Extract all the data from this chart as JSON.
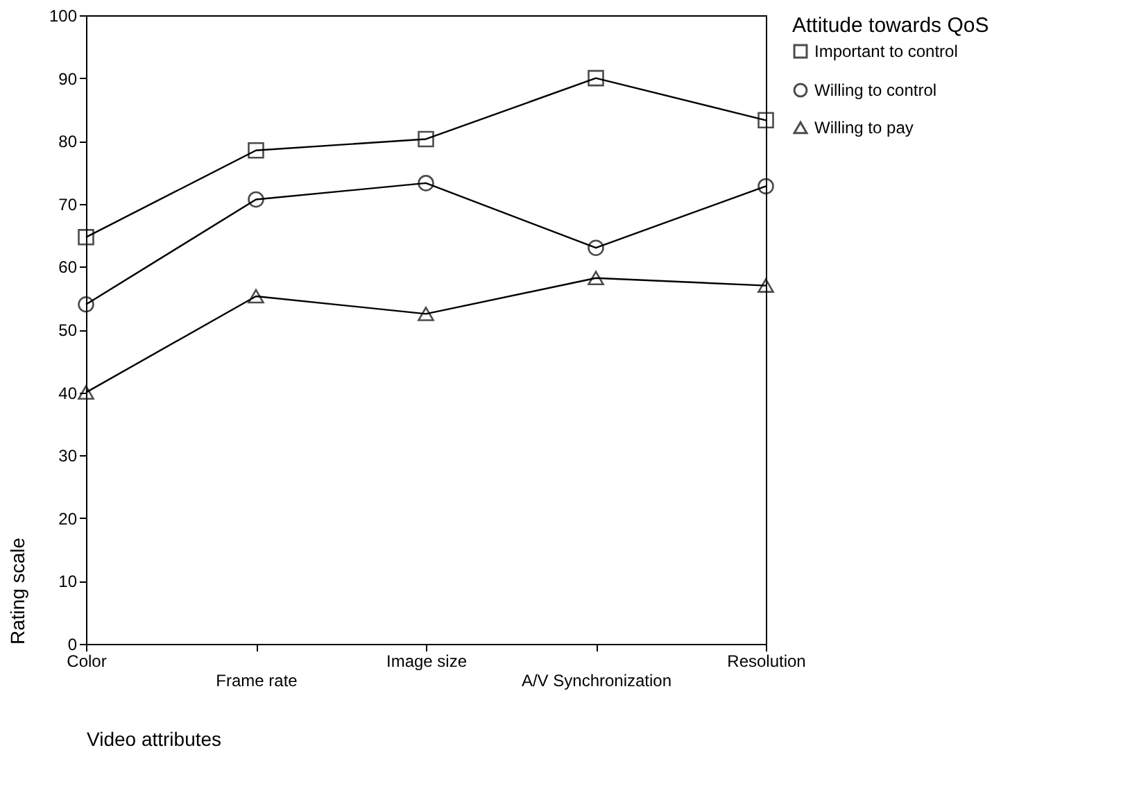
{
  "chart_data": {
    "type": "line",
    "xlabel": "Video attributes",
    "ylabel": "Rating scale",
    "legend_title": "Attitude towards QoS",
    "categories": [
      "Color",
      "Frame rate",
      "Image size",
      "A/V Synchronization",
      "Resolution"
    ],
    "series": [
      {
        "name": "Important to control",
        "color": "#000000",
        "marker": "square",
        "values": [
          64.7,
          78.5,
          80.3,
          90.0,
          83.3
        ]
      },
      {
        "name": "Willing to control",
        "color": "#000000",
        "marker": "circle",
        "values": [
          54.0,
          70.7,
          73.3,
          63.0,
          72.8
        ]
      },
      {
        "name": "Willing to pay",
        "color": "#000000",
        "marker": "triangle",
        "values": [
          40.0,
          55.3,
          52.5,
          58.2,
          57.0
        ]
      }
    ],
    "ylim": [
      0,
      100
    ],
    "yticks": [
      0,
      10,
      20,
      30,
      40,
      50,
      60,
      70,
      80,
      90,
      100
    ],
    "grid": false,
    "legend": "right",
    "line_style": "solid"
  }
}
